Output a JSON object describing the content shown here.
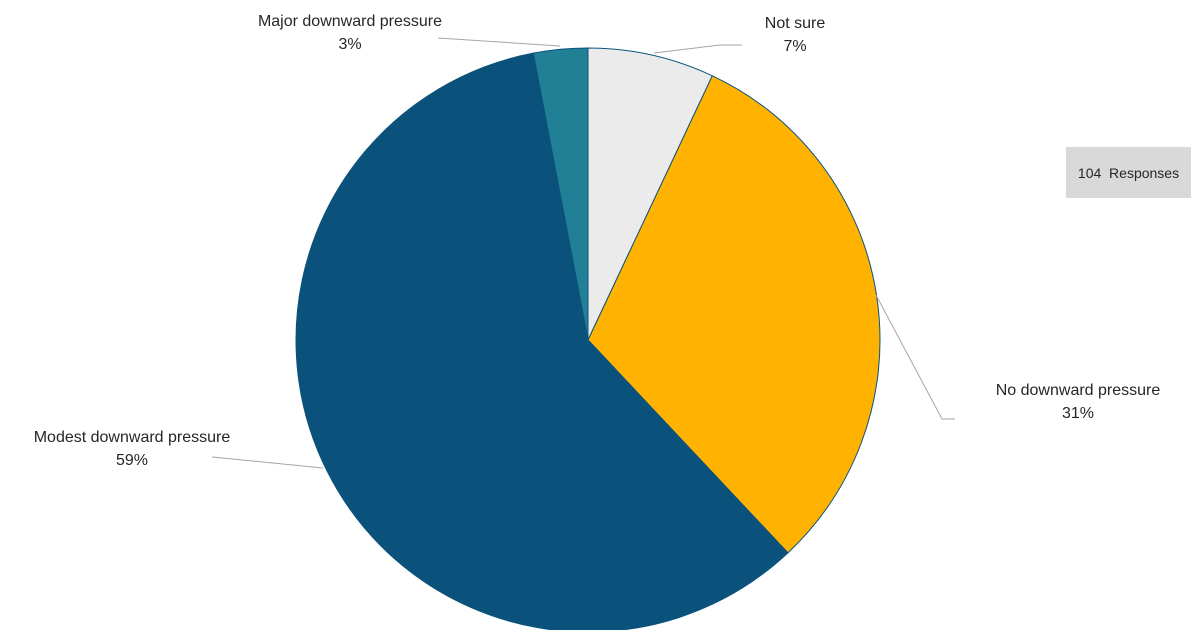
{
  "chart_data": {
    "type": "pie",
    "title": "",
    "slices": [
      {
        "label": "Not sure",
        "value": 7,
        "value_label": "7%",
        "color": "#ebebeb"
      },
      {
        "label": "No downward pressure",
        "value": 31,
        "value_label": "31%",
        "color": "#ffb300"
      },
      {
        "label": "Modest downward pressure",
        "value": 59,
        "value_label": "59%",
        "color": "#0a527c"
      },
      {
        "label": "Major downward pressure",
        "value": 3,
        "value_label": "3%",
        "color": "#217f96"
      }
    ],
    "start": "12 o'clock",
    "direction": "clockwise",
    "legend": "none",
    "slice_border_color": "#0a527c"
  },
  "responses_box": {
    "count": "104",
    "label": "Responses",
    "text": "104  Responses"
  }
}
